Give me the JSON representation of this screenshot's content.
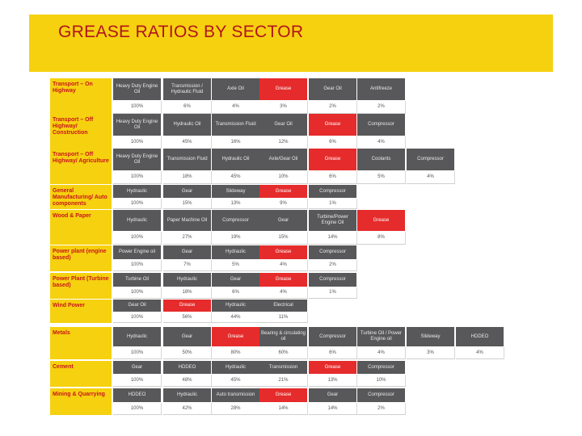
{
  "header": {
    "title": "GREASE RATIOS BY SECTOR"
  },
  "colors": {
    "banner": "#f6d10f",
    "title": "#b0141c",
    "sector_text": "#c8161d",
    "name_cell": "#58585a",
    "grease_cell": "#e52b2b"
  },
  "sectors": [
    {
      "label": "Transport – On Highway",
      "products": [
        "Heavy Duty Engine Oil",
        "Transmission / Hydraulic Fluid",
        "Axle Oil",
        "Grease",
        "Gear Oil",
        "Antifreeze"
      ],
      "shares": [
        "100%",
        "6%",
        "4%",
        "3%",
        "2%",
        "2%"
      ]
    },
    {
      "label": "Transport – Off Highway/ Construction",
      "products": [
        "Heavy Duty Engine Oil",
        "Hydraulic Oil",
        "Transmission Fluid",
        "Gear Oil",
        "Grease",
        "Compressor"
      ],
      "shares": [
        "100%",
        "45%",
        "16%",
        "12%",
        "6%",
        "4%"
      ]
    },
    {
      "label": "Transport – Off Highway/ Agriculture",
      "products": [
        "Heavy Duty Engine Oil",
        "Transmission Fluid",
        "Hydraulic Oil",
        "Axle/Gear Oil",
        "Grease",
        "Coolants",
        "Compressor"
      ],
      "shares": [
        "100%",
        "18%",
        "45%",
        "10%",
        "6%",
        "5%",
        "4%"
      ]
    },
    {
      "label": "General Manufacturing/ Auto components",
      "products": [
        "Hydraulic",
        "Gear",
        "Slideway",
        "Grease",
        "Compressor"
      ],
      "shares": [
        "100%",
        "15%",
        "13%",
        "9%",
        "1%"
      ]
    },
    {
      "label": "Wood & Paper",
      "products": [
        "Hydraulic",
        "Paper Machine Oil",
        "Compressor",
        "Gear",
        "Turbine/Power Engine Oil",
        "Grease"
      ],
      "shares": [
        "100%",
        "27%",
        "19%",
        "15%",
        "14%",
        "8%"
      ]
    },
    {
      "label": "Power plant (engine based)",
      "products": [
        "Power Engine oil",
        "Gear",
        "Hydraulic",
        "Grease",
        "Compressor"
      ],
      "shares": [
        "100%",
        "7%",
        "5%",
        "4%",
        "2%"
      ]
    },
    {
      "label": "Power Plant (Turbine based)",
      "products": [
        "Turbine Oil",
        "Hydraulic",
        "Gear",
        "Grease",
        "Compressor"
      ],
      "shares": [
        "100%",
        "18%",
        "6%",
        "4%",
        "1%"
      ]
    },
    {
      "label": "Wind Power",
      "products": [
        "Gear Oil",
        "Grease",
        "Hydraulic",
        "Electrical"
      ],
      "shares": [
        "100%",
        "56%",
        "44%",
        "11%"
      ]
    },
    {
      "label": "Metals",
      "products": [
        "Hydraulic",
        "Gear",
        "Grease",
        "Bearing & circulating oil",
        "Compressor",
        "Turbine Oil / Power Engine oil",
        "Slideway",
        "HDDEO"
      ],
      "shares": [
        "100%",
        "50%",
        "80%",
        "60%",
        "6%",
        "4%",
        "3%",
        "4%"
      ]
    },
    {
      "label": "Cement",
      "products": [
        "Gear",
        "HDDEO",
        "Hydraulic",
        "Transmission",
        "Grease",
        "Compressor"
      ],
      "shares": [
        "100%",
        "48%",
        "45%",
        "21%",
        "13%",
        "10%"
      ]
    },
    {
      "label": "Mining & Quarrying",
      "products": [
        "HDDEO",
        "Hydraulic",
        "Auto transmission",
        "Grease",
        "Gear",
        "Compressor"
      ],
      "shares": [
        "100%",
        "42%",
        "28%",
        "14%",
        "14%",
        "2%"
      ]
    }
  ]
}
